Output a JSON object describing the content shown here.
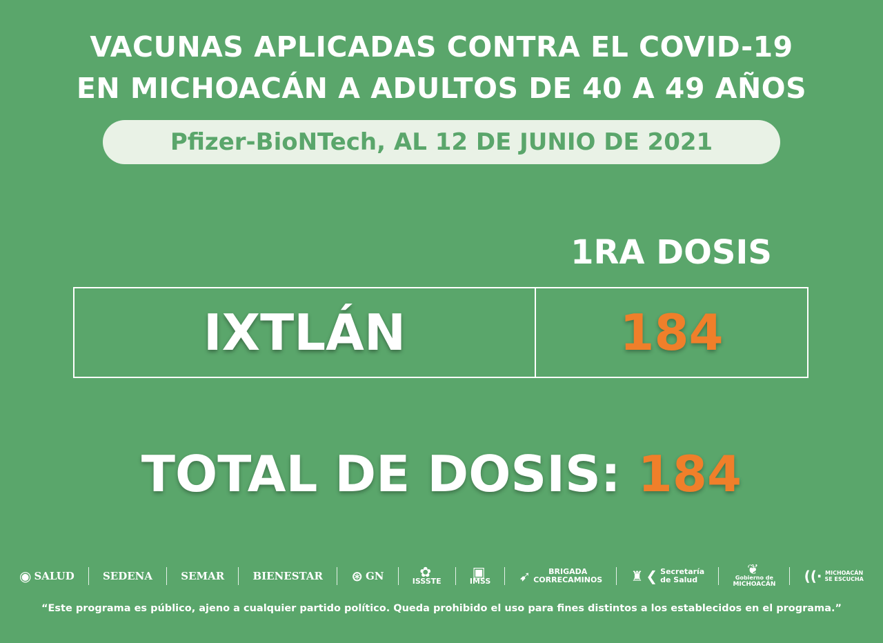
{
  "header": {
    "title_line1": "VACUNAS APLICADAS CONTRA EL COVID-19",
    "title_line2": "EN MICHOACÁN A ADULTOS DE 40 A 49 AÑOS",
    "subtitle": "Pfizer-BioNTech, AL 12 DE JUNIO DE 2021"
  },
  "table": {
    "column_header": "1RA DOSIS",
    "rows": [
      {
        "municipality": "IXTLÁN",
        "first_dose": "184"
      }
    ]
  },
  "total": {
    "label": "TOTAL DE DOSIS:",
    "value": "184"
  },
  "logos": {
    "salud": "SALUD",
    "sedena": "SEDENA",
    "semar": "SEMAR",
    "bienestar": "BIENESTAR",
    "gn": "GN",
    "issste": "ISSSTE",
    "imss": "IMSS",
    "brigada_line1": "BRIGADA",
    "brigada_line2": "CORRECAMINOS",
    "secretaria_line1": "Secretaría",
    "secretaria_line2": "de Salud",
    "michoacan_line1": "Gobierno de",
    "michoacan_line2": "MICHOACÁN",
    "escucha_line1": "MICHOACÁN",
    "escucha_line2": "SE ESCUCHA"
  },
  "footer": {
    "disclaimer": "“Este programa es público, ajeno a cualquier partido político. Queda prohibido el uso para fines distintos a los establecidos en el programa.”"
  },
  "colors": {
    "background": "#5aa66b",
    "accent_orange": "#f07f2a",
    "pill": "#e9f2e6"
  },
  "icons": [
    "mexico-seal-icon",
    "gn-seal-icon",
    "issste-icon",
    "imss-icon",
    "roadrunner-icon",
    "michoacan-crest-icon",
    "salud-k-icon",
    "monarch-icon",
    "broadcast-icon"
  ]
}
